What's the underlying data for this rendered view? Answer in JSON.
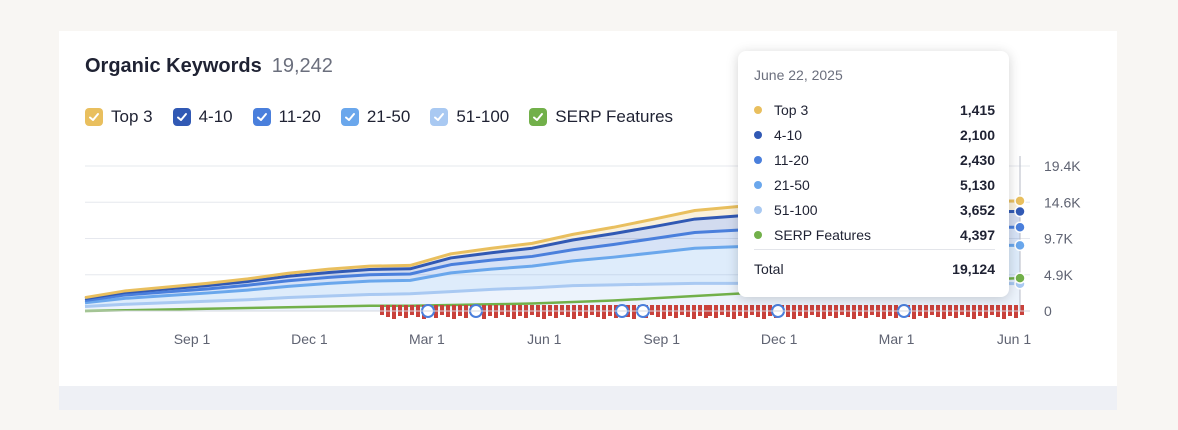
{
  "header": {
    "title": "Organic Keywords",
    "count": "19,242"
  },
  "legend": [
    {
      "label": "Top 3",
      "color": "#e9bf5e",
      "checked": true
    },
    {
      "label": "4-10",
      "color": "#3159b4",
      "checked": true
    },
    {
      "label": "11-20",
      "color": "#4a7fdc",
      "checked": true
    },
    {
      "label": "21-50",
      "color": "#6aa7ec",
      "checked": true
    },
    {
      "label": "51-100",
      "color": "#a9c9f2",
      "checked": true
    },
    {
      "label": "SERP Features",
      "color": "#72b04a",
      "checked": true
    }
  ],
  "tooltip": {
    "date": "June 22, 2025",
    "rows": [
      {
        "label": "Top 3",
        "value": "1,415",
        "color": "#e9bf5e"
      },
      {
        "label": "4-10",
        "value": "2,100",
        "color": "#3159b4"
      },
      {
        "label": "11-20",
        "value": "2,430",
        "color": "#4a7fdc"
      },
      {
        "label": "21-50",
        "value": "5,130",
        "color": "#6aa7ec"
      },
      {
        "label": "51-100",
        "value": "3,652",
        "color": "#a9c9f2"
      },
      {
        "label": "SERP Features",
        "value": "4,397",
        "color": "#72b04a"
      }
    ],
    "total_label": "Total",
    "total_value": "19,124"
  },
  "chart_data": {
    "type": "area",
    "stacked": true,
    "x_labels": [
      "Sep 1",
      "Dec 1",
      "Mar 1",
      "Jun 1",
      "Sep 1",
      "Dec 1",
      "Mar 1",
      "Jun 1"
    ],
    "y_ticks": [
      "0",
      "4.9K",
      "9.7K",
      "14.6K",
      "19.4K"
    ],
    "ylim": [
      0,
      19400
    ],
    "x": [
      "Jul 2023",
      "Aug 2023",
      "Sep 2023",
      "Oct 2023",
      "Nov 2023",
      "Dec 2023",
      "Jan 2024",
      "Feb 2024",
      "Mar 2024",
      "Apr 2024",
      "May 2024",
      "Jun 2024",
      "Jul 2024",
      "Aug 2024",
      "Sep 2024",
      "Oct 2024",
      "Nov 2024",
      "Dec 2024",
      "Jan 2025",
      "Feb 2025",
      "Mar 2025",
      "Apr 2025",
      "May 2025",
      "Jun 2025"
    ],
    "series": [
      {
        "name": "51-100",
        "color": "#a9c9f2",
        "values": [
          600,
          900,
          1100,
          1300,
          1500,
          1800,
          2000,
          2200,
          2300,
          2600,
          2900,
          3100,
          3400,
          3500,
          3600,
          3700,
          3700,
          3800,
          3800,
          3800,
          3700,
          3700,
          3700,
          3652
        ]
      },
      {
        "name": "21-50",
        "color": "#6aa7ec",
        "values": [
          500,
          800,
          950,
          1100,
          1300,
          1500,
          1700,
          1800,
          1800,
          2500,
          2700,
          2900,
          3300,
          3700,
          4200,
          4700,
          4900,
          5000,
          5000,
          5000,
          5100,
          5100,
          5100,
          5130
        ]
      },
      {
        "name": "11-20",
        "color": "#4a7fdc",
        "values": [
          300,
          450,
          500,
          550,
          650,
          750,
          800,
          850,
          850,
          1100,
          1200,
          1300,
          1500,
          1700,
          1900,
          2100,
          2200,
          2300,
          2300,
          2350,
          2400,
          2400,
          2400,
          2430
        ]
      },
      {
        "name": "4-10",
        "color": "#3159b4",
        "values": [
          250,
          350,
          400,
          450,
          500,
          600,
          650,
          700,
          700,
          900,
          1000,
          1100,
          1300,
          1450,
          1600,
          1800,
          1900,
          2000,
          2000,
          2050,
          2100,
          2100,
          2100,
          2100
        ]
      },
      {
        "name": "Top 3",
        "color": "#e9bf5e",
        "values": [
          150,
          200,
          250,
          300,
          350,
          400,
          450,
          450,
          450,
          550,
          600,
          650,
          750,
          850,
          1000,
          1150,
          1250,
          1300,
          1300,
          1350,
          1400,
          1400,
          1400,
          1415
        ]
      }
    ],
    "serp_features": {
      "name": "SERP Features",
      "color": "#72b04a",
      "values": [
        0,
        100,
        200,
        300,
        400,
        500,
        600,
        700,
        700,
        800,
        900,
        1000,
        1200,
        1400,
        1700,
        2000,
        2300,
        2600,
        2900,
        3200,
        3600,
        3900,
        4200,
        4397
      ]
    },
    "annotation_color": "#c9413b"
  }
}
